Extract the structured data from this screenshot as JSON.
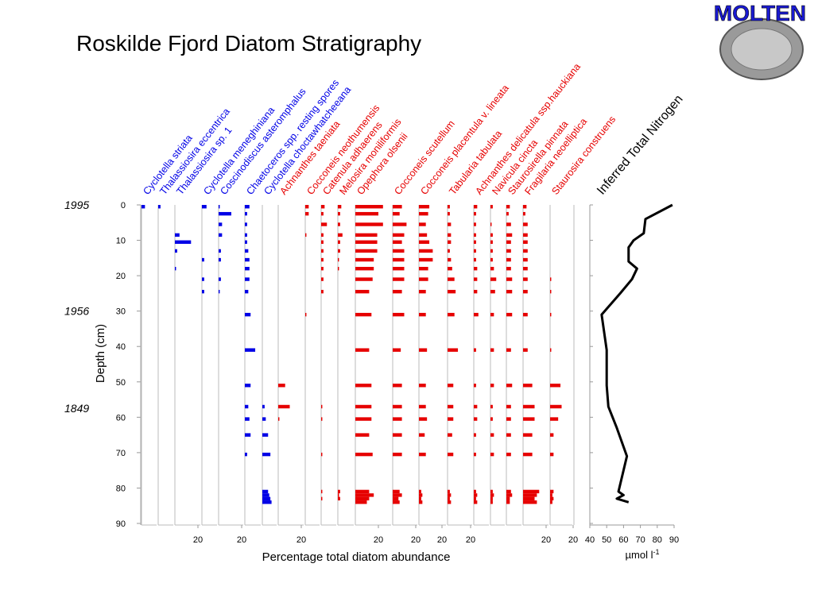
{
  "chart_data": {
    "type": "stratigraphy",
    "title": "Roskilde Fjord Diatom Stratigraphy",
    "logo": "MOLTEN",
    "ylabel": "Depth (cm)",
    "xlabel": "Percentage total diatom abundance",
    "ylim": [
      0,
      90
    ],
    "yticks": [
      0,
      10,
      20,
      30,
      40,
      50,
      60,
      70,
      80,
      90
    ],
    "date_markers": [
      {
        "depth": 0,
        "label": "1995"
      },
      {
        "depth": 30,
        "label": "1956"
      },
      {
        "depth": 57.5,
        "label": "1849"
      }
    ],
    "depths": [
      0.5,
      2.5,
      5.5,
      8.5,
      10.5,
      13,
      15.5,
      18,
      21,
      24.5,
      31,
      41,
      51,
      57,
      60.5,
      65,
      70.5,
      81,
      82,
      83,
      84
    ],
    "taxa": [
      {
        "name": "Cyclotella striata",
        "color": "#0000e6",
        "values": [
          3,
          0,
          0,
          0,
          0,
          0,
          0,
          0,
          0,
          0,
          0,
          0,
          0,
          0,
          0,
          0,
          0,
          0,
          0,
          0,
          0
        ]
      },
      {
        "name": "Thalassiosira eccentrica",
        "color": "#0000e6",
        "values": [
          2,
          0,
          0,
          0,
          0,
          0,
          0,
          0,
          0,
          0,
          0,
          0,
          0,
          0,
          0,
          0,
          0,
          0,
          0,
          0,
          0
        ]
      },
      {
        "name": "Thalassiosira sp. 1",
        "color": "#0000e6",
        "values": [
          0,
          0,
          0,
          4,
          14,
          2,
          0,
          1,
          0,
          0,
          0,
          0,
          0,
          0,
          0,
          0,
          0,
          0,
          0,
          0,
          0
        ],
        "xticks": [
          20
        ]
      },
      {
        "name": "Cyclotella meneghiniana",
        "color": "#0000e6",
        "values": [
          4,
          0,
          0,
          0,
          0,
          0,
          2,
          0,
          2,
          2,
          0,
          0,
          0,
          0,
          0,
          0,
          0,
          0,
          0,
          0,
          0
        ]
      },
      {
        "name": "Coscinodiscus asteromphalus",
        "color": "#0000e6",
        "values": [
          1,
          11,
          3,
          3,
          0,
          2,
          2,
          0,
          2,
          1,
          0,
          0,
          0,
          0,
          0,
          0,
          0,
          0,
          0,
          0,
          0
        ],
        "xticks": [
          20
        ]
      },
      {
        "name": "Chaetoceros spp. resting spores",
        "color": "#0000e6",
        "values": [
          4,
          2,
          2,
          2,
          2,
          3,
          4,
          4,
          4,
          3,
          5,
          9,
          5,
          3,
          4,
          5,
          2,
          0,
          0,
          0,
          0
        ]
      },
      {
        "name": "Cyclotella choctawhatcheeana",
        "color": "#0000e6",
        "values": [
          0,
          0,
          0,
          0,
          0,
          0,
          0,
          0,
          0,
          0,
          0,
          0,
          0,
          2,
          3,
          5,
          7,
          5,
          6,
          7,
          8
        ]
      },
      {
        "name": "Achnanthes taeniata",
        "color": "#e60000",
        "values": [
          0,
          0,
          0,
          0,
          0,
          0,
          0,
          0,
          0,
          0,
          0,
          0,
          6,
          10,
          1,
          0,
          0,
          0,
          0,
          0,
          0
        ],
        "xticks": [
          20
        ]
      },
      {
        "name": "Cocconeis neothumensis",
        "color": "#e60000",
        "values": [
          3,
          3,
          0,
          1,
          0,
          0,
          0,
          0,
          0,
          0,
          1,
          0,
          0,
          0,
          0,
          0,
          0,
          0,
          0,
          0,
          0
        ]
      },
      {
        "name": "Catenula adhaerens",
        "color": "#e60000",
        "values": [
          3,
          2,
          5,
          2,
          2,
          2,
          2,
          2,
          2,
          2,
          0,
          0,
          0,
          1,
          1,
          0,
          1,
          1,
          0,
          1,
          0
        ]
      },
      {
        "name": "Melosira moniliformis",
        "color": "#e60000",
        "values": [
          3,
          2,
          2,
          4,
          2,
          2,
          1,
          1,
          0,
          0,
          0,
          0,
          0,
          0,
          0,
          0,
          0,
          2,
          1,
          2,
          0
        ]
      },
      {
        "name": "Opephora olsenii",
        "color": "#e60000",
        "values": [
          24,
          20,
          24,
          19,
          19,
          19,
          16,
          16,
          15,
          12,
          14,
          12,
          14,
          14,
          14,
          12,
          15,
          12,
          16,
          12,
          10
        ],
        "xticks": [
          20
        ]
      },
      {
        "name": "Cocconeis scutellum",
        "color": "#e60000",
        "values": [
          8,
          6,
          12,
          10,
          8,
          10,
          10,
          10,
          10,
          8,
          10,
          7,
          8,
          8,
          8,
          8,
          8,
          6,
          8,
          5,
          6
        ],
        "xticks": [
          20
        ]
      },
      {
        "name": "Cocconeis placentula v. lineata",
        "color": "#e60000",
        "values": [
          9,
          8,
          6,
          7,
          9,
          12,
          12,
          8,
          8,
          6,
          6,
          7,
          6,
          6,
          7,
          5,
          6,
          2,
          3,
          2,
          3
        ],
        "xticks": [
          20
        ]
      },
      {
        "name": "Tabularia tabulata",
        "color": "#e60000",
        "values": [
          2,
          2,
          3,
          3,
          3,
          2,
          3,
          4,
          6,
          7,
          6,
          9,
          5,
          5,
          5,
          4,
          5,
          2,
          3,
          2,
          3
        ],
        "xticks": [
          20
        ]
      },
      {
        "name": "Achnanthes delicatula ssp.hauckiana",
        "color": "#e60000",
        "values": [
          3,
          2,
          2,
          2,
          2,
          2,
          2,
          3,
          3,
          3,
          4,
          2,
          2,
          3,
          3,
          2,
          2,
          2,
          3,
          2,
          3
        ]
      },
      {
        "name": "Navicula cincta",
        "color": "#e60000",
        "values": [
          2,
          0,
          1,
          2,
          2,
          2,
          2,
          3,
          5,
          4,
          3,
          3,
          3,
          2,
          2,
          3,
          3,
          2,
          3,
          2,
          2
        ]
      },
      {
        "name": "Staurosirella pinnata",
        "color": "#e60000",
        "values": [
          3,
          2,
          4,
          5,
          4,
          4,
          4,
          4,
          5,
          5,
          5,
          4,
          5,
          4,
          4,
          4,
          4,
          4,
          5,
          3,
          3
        ]
      },
      {
        "name": "Fragilaria neoelliptica",
        "color": "#e60000",
        "values": [
          3,
          2,
          4,
          4,
          4,
          4,
          4,
          4,
          4,
          4,
          4,
          4,
          8,
          10,
          10,
          8,
          8,
          14,
          12,
          10,
          12
        ],
        "xticks": [
          20
        ]
      },
      {
        "name": "Staurosira construens",
        "color": "#e60000",
        "values": [
          0,
          0,
          0,
          0,
          0,
          0,
          0,
          0,
          1,
          1,
          1,
          1,
          9,
          10,
          7,
          3,
          3,
          3,
          2,
          3,
          2
        ],
        "xticks": [
          20
        ]
      }
    ],
    "nitrogen": {
      "title": "Inferred Total Nitrogen",
      "xlabel": "µmol l",
      "xlabel_sup": "-1",
      "color": "#000000",
      "xlim": [
        40,
        90
      ],
      "xticks": [
        40,
        50,
        60,
        70,
        80,
        90
      ],
      "depths": [
        0,
        4,
        8,
        10,
        12,
        16,
        18,
        21,
        25,
        31,
        41,
        51,
        57,
        63,
        71,
        81,
        82,
        83,
        84
      ],
      "values": [
        89,
        73,
        72,
        66,
        63,
        63,
        68,
        65,
        58,
        47,
        50,
        50,
        51,
        56,
        62,
        57,
        60,
        56,
        63
      ]
    }
  }
}
